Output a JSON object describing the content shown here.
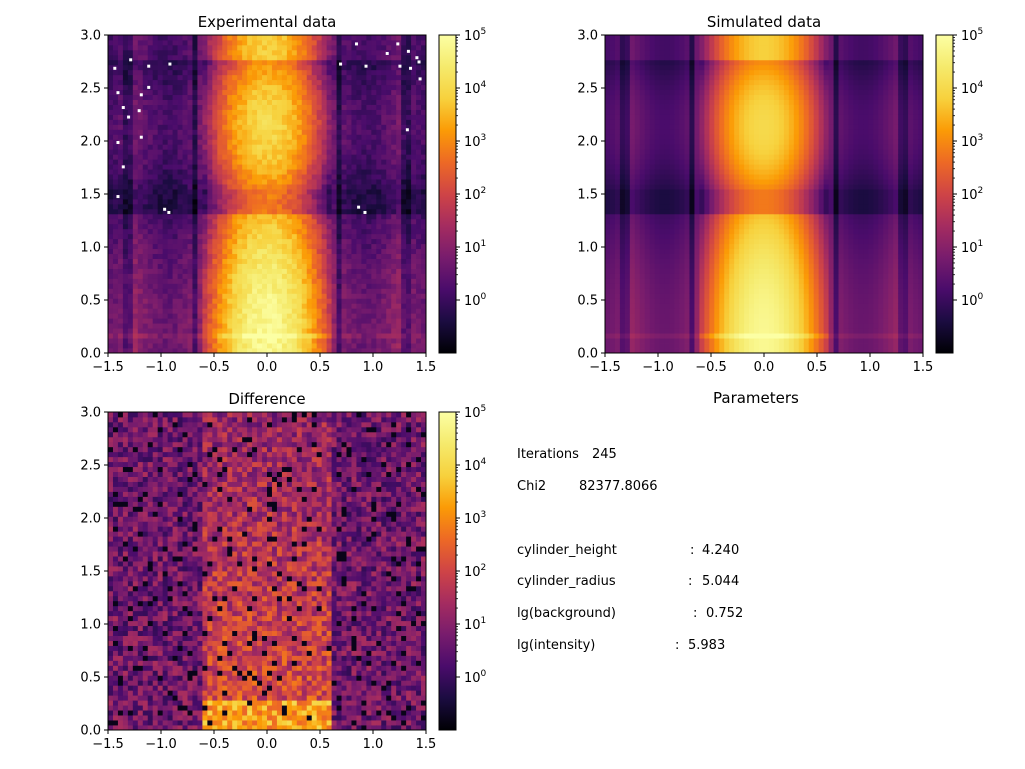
{
  "chart_data": [
    {
      "type": "heatmap",
      "title": "Experimental data",
      "x_range": [
        -1.5,
        1.5
      ],
      "y_range": [
        0.0,
        3.0
      ],
      "x_ticks": [
        "−1.5",
        "−1.0",
        "−0.5",
        "0.0",
        "0.5",
        "1.0",
        "1.5"
      ],
      "y_ticks": [
        "0.0",
        "0.5",
        "1.0",
        "1.5",
        "2.0",
        "2.5",
        "3.0"
      ],
      "colormap": "inferno",
      "color_scale": "log",
      "colorbar_range": [
        0.1,
        100000
      ],
      "colorbar_ticks": [
        {
          "base": "10",
          "exp": "0"
        },
        {
          "base": "10",
          "exp": "1"
        },
        {
          "base": "10",
          "exp": "2"
        },
        {
          "base": "10",
          "exp": "3"
        },
        {
          "base": "10",
          "exp": "4"
        },
        {
          "base": "10",
          "exp": "5"
        }
      ]
    },
    {
      "type": "heatmap",
      "title": "Simulated data",
      "x_range": [
        -1.5,
        1.5
      ],
      "y_range": [
        0.0,
        3.0
      ],
      "x_ticks": [
        "−1.5",
        "−1.0",
        "−0.5",
        "0.0",
        "0.5",
        "1.0",
        "1.5"
      ],
      "y_ticks": [
        "0.0",
        "0.5",
        "1.0",
        "1.5",
        "2.0",
        "2.5",
        "3.0"
      ],
      "colormap": "inferno",
      "color_scale": "log",
      "colorbar_range": [
        0.1,
        100000
      ],
      "colorbar_ticks": [
        {
          "base": "10",
          "exp": "0"
        },
        {
          "base": "10",
          "exp": "1"
        },
        {
          "base": "10",
          "exp": "2"
        },
        {
          "base": "10",
          "exp": "3"
        },
        {
          "base": "10",
          "exp": "4"
        },
        {
          "base": "10",
          "exp": "5"
        }
      ]
    },
    {
      "type": "heatmap",
      "title": "Difference",
      "x_range": [
        -1.5,
        1.5
      ],
      "y_range": [
        0.0,
        3.0
      ],
      "x_ticks": [
        "−1.5",
        "−1.0",
        "−0.5",
        "0.0",
        "0.5",
        "1.0",
        "1.5"
      ],
      "y_ticks": [
        "0.0",
        "0.5",
        "1.0",
        "1.5",
        "2.0",
        "2.5",
        "3.0"
      ],
      "colormap": "inferno",
      "color_scale": "log",
      "colorbar_range": [
        0.1,
        100000
      ],
      "colorbar_ticks": [
        {
          "base": "10",
          "exp": "0"
        },
        {
          "base": "10",
          "exp": "1"
        },
        {
          "base": "10",
          "exp": "2"
        },
        {
          "base": "10",
          "exp": "3"
        },
        {
          "base": "10",
          "exp": "4"
        },
        {
          "base": "10",
          "exp": "5"
        }
      ]
    }
  ],
  "parameters_panel": {
    "title": "Parameters",
    "iterations_label": "Iterations",
    "iterations_value": "245",
    "chi2_label": "Chi2",
    "chi2_value": "82377.8066",
    "params": [
      {
        "name": "cylinder_height",
        "value": "4.240"
      },
      {
        "name": "cylinder_radius",
        "value": "5.044"
      },
      {
        "name": "lg(background)",
        "value": "0.752"
      },
      {
        "name": "lg(intensity)",
        "value": "5.983"
      }
    ]
  }
}
